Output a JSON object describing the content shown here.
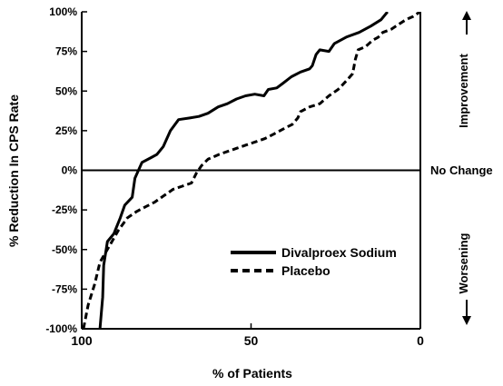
{
  "chart_data": {
    "type": "line",
    "xlabel": "% of Patients",
    "ylabel": "% Reduction In CPS Rate",
    "xlim": [
      100,
      0
    ],
    "ylim": [
      -100,
      100
    ],
    "x_ticks": [
      {
        "value": 100,
        "label": "100"
      },
      {
        "value": 50,
        "label": "50"
      },
      {
        "value": 0,
        "label": "0"
      }
    ],
    "y_ticks": [
      {
        "value": 100,
        "label": "100%"
      },
      {
        "value": 75,
        "label": "75%"
      },
      {
        "value": 50,
        "label": "50%"
      },
      {
        "value": 25,
        "label": "25%"
      },
      {
        "value": 0,
        "label": "0%"
      },
      {
        "value": -25,
        "label": "-25%"
      },
      {
        "value": -50,
        "label": "-50%"
      },
      {
        "value": -75,
        "label": "-75%"
      },
      {
        "value": -100,
        "label": "-100%"
      }
    ],
    "grid": false,
    "legend_position": "lower-right",
    "reference_line": {
      "y": 0,
      "label": "No Change"
    },
    "side_annotations": {
      "upper": "Improvement",
      "lower": "Worsening"
    },
    "series": [
      {
        "name": "Divalproex Sodium",
        "style": "solid",
        "points": [
          [
            94.6,
            -100
          ],
          [
            93.8,
            -80
          ],
          [
            93.5,
            -60
          ],
          [
            92.4,
            -45
          ],
          [
            90.5,
            -40
          ],
          [
            88.6,
            -30
          ],
          [
            87.3,
            -22
          ],
          [
            85.1,
            -17
          ],
          [
            84.3,
            -5
          ],
          [
            82.2,
            5
          ],
          [
            79.5,
            8
          ],
          [
            77.8,
            10
          ],
          [
            75.9,
            15
          ],
          [
            73.8,
            25
          ],
          [
            71.4,
            32
          ],
          [
            68.1,
            33
          ],
          [
            65.4,
            34
          ],
          [
            62.7,
            36
          ],
          [
            59.7,
            40
          ],
          [
            57.0,
            42
          ],
          [
            54.3,
            45
          ],
          [
            51.6,
            47
          ],
          [
            48.9,
            48
          ],
          [
            46.2,
            47
          ],
          [
            44.9,
            51
          ],
          [
            42.4,
            52
          ],
          [
            40.5,
            55
          ],
          [
            38.1,
            59
          ],
          [
            35.4,
            62
          ],
          [
            32.7,
            64
          ],
          [
            31.9,
            66
          ],
          [
            30.8,
            73
          ],
          [
            29.7,
            76
          ],
          [
            27.0,
            75
          ],
          [
            25.4,
            80
          ],
          [
            21.9,
            84
          ],
          [
            18.1,
            87
          ],
          [
            14.6,
            91
          ],
          [
            11.6,
            95
          ],
          [
            9.7,
            100
          ]
        ]
      },
      {
        "name": "Placebo",
        "style": "dashed",
        "points": [
          [
            99.5,
            -100
          ],
          [
            98.1,
            -85
          ],
          [
            96.2,
            -72
          ],
          [
            94.6,
            -58
          ],
          [
            91.9,
            -48
          ],
          [
            89.2,
            -38
          ],
          [
            86.5,
            -30
          ],
          [
            83.8,
            -26
          ],
          [
            81.1,
            -23
          ],
          [
            78.4,
            -20
          ],
          [
            75.7,
            -16
          ],
          [
            73.0,
            -12
          ],
          [
            70.3,
            -10
          ],
          [
            67.6,
            -8
          ],
          [
            66.2,
            -2
          ],
          [
            64.6,
            3
          ],
          [
            62.7,
            7
          ],
          [
            59.5,
            10
          ],
          [
            56.8,
            12
          ],
          [
            54.1,
            14
          ],
          [
            51.4,
            16
          ],
          [
            48.6,
            18
          ],
          [
            45.9,
            20
          ],
          [
            43.2,
            23
          ],
          [
            40.5,
            26
          ],
          [
            37.8,
            29
          ],
          [
            36.2,
            33
          ],
          [
            35.4,
            37
          ],
          [
            32.7,
            40
          ],
          [
            29.7,
            42
          ],
          [
            27.0,
            47
          ],
          [
            24.3,
            51
          ],
          [
            21.6,
            57
          ],
          [
            20.0,
            61
          ],
          [
            19.2,
            70
          ],
          [
            18.4,
            76
          ],
          [
            16.2,
            78
          ],
          [
            14.1,
            82
          ],
          [
            12.4,
            84
          ],
          [
            11.1,
            87
          ],
          [
            8.6,
            89
          ],
          [
            6.5,
            92
          ],
          [
            4.3,
            95
          ],
          [
            2.2,
            97
          ],
          [
            0.8,
            99
          ],
          [
            0,
            100
          ]
        ]
      }
    ]
  }
}
